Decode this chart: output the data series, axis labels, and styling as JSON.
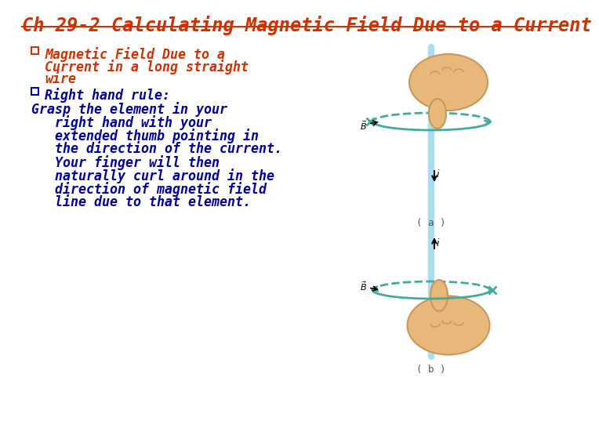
{
  "background_color": "#ffffff",
  "title": "Ch 29-2 Calculating Magnetic Field Due to a Current",
  "title_color": "#cc3300",
  "title_fontsize": 17,
  "bullet1_line1": "Magnetic Field Due to a",
  "bullet1_line2": "Current in a long straight",
  "bullet1_line3": "wire",
  "bullet1_color": "#cc3300",
  "bullet2_text": "Right hand rule:",
  "bullet2_color": "#000099",
  "body_text_color": "#000099",
  "body_lines": [
    "Grasp the element in your",
    "   right hand with your",
    "   extended thumb pointing in",
    "   the direction of the current.",
    "   Your finger will then",
    "   naturally curl around in the",
    "   direction of magnetic field",
    "   line due to that element."
  ],
  "body_fontsize": 12,
  "bullet_fontsize": 12,
  "caption_a": "( a )",
  "caption_b": "( b )",
  "caption_color": "#555555",
  "wire_color": "#aaddee",
  "ring_color": "#44aa99",
  "hand_color": "#e8b87a",
  "hand_edge_color": "#c8985a",
  "arrow_color": "#000000"
}
